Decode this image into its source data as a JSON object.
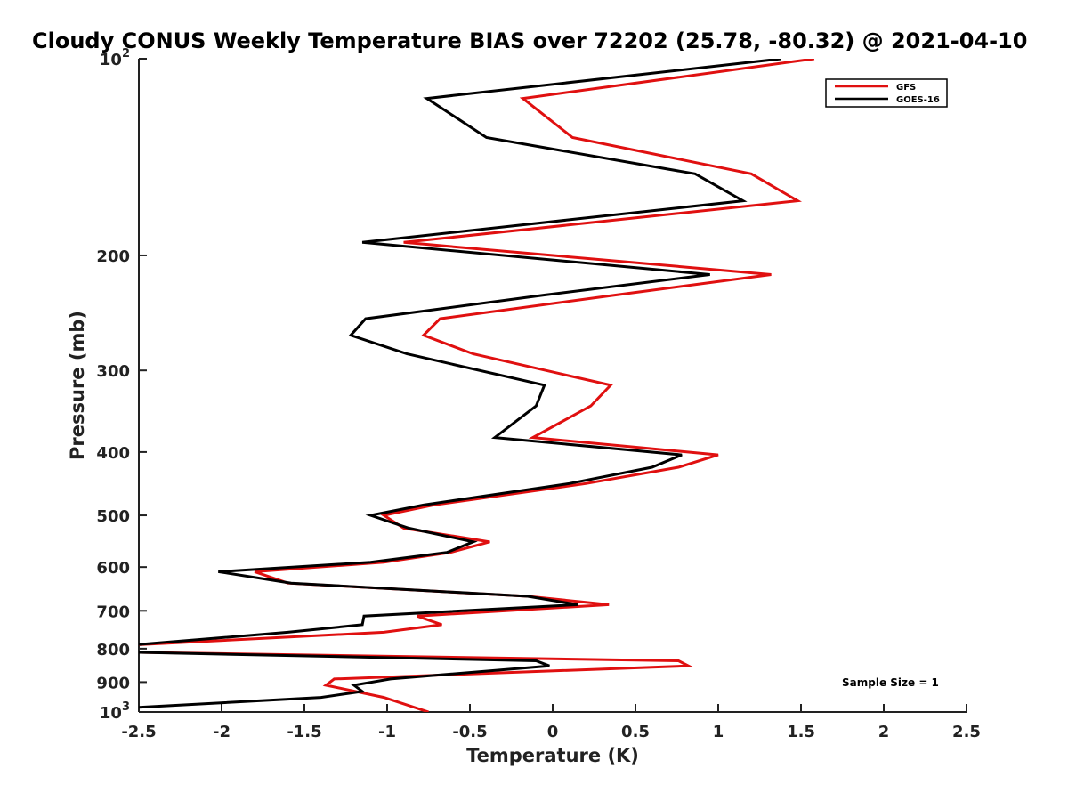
{
  "chart_data": {
    "type": "line",
    "title": "Cloudy CONUS Weekly Temperature BIAS over 72202 (25.78, -80.32) @ 2021-04-10",
    "xlabel": "Temperature (K)",
    "ylabel": "Pressure (mb)",
    "xlim": [
      -2.5,
      2.5
    ],
    "ylim": [
      1000,
      100
    ],
    "yscale": "log",
    "y_reversed": true,
    "grid": false,
    "legend_position": "top-right",
    "x_ticks": [
      "-2.5",
      "-2",
      "-1.5",
      "-1",
      "-0.5",
      "0",
      "0.5",
      "1",
      "1.5",
      "2",
      "2.5"
    ],
    "x_tick_values": [
      -2.5,
      -2,
      -1.5,
      -1,
      -0.5,
      0,
      0.5,
      1,
      1.5,
      2,
      2.5
    ],
    "y_ticks": [
      {
        "value": 100,
        "base": "10",
        "exp": "2"
      },
      {
        "value": 200,
        "label": "200"
      },
      {
        "value": 300,
        "label": "300"
      },
      {
        "value": 400,
        "label": "400"
      },
      {
        "value": 500,
        "label": "500"
      },
      {
        "value": 600,
        "label": "600"
      },
      {
        "value": 700,
        "label": "700"
      },
      {
        "value": 800,
        "label": "800"
      },
      {
        "value": 900,
        "label": "900"
      },
      {
        "value": 1000,
        "base": "10",
        "exp": "3"
      }
    ],
    "annotation": "Sample Size = 1",
    "series": [
      {
        "name": "GFS",
        "color": "#e01010",
        "x": [
          1.58,
          -0.18,
          0.12,
          1.2,
          1.48,
          -0.9,
          1.32,
          0.38,
          -0.68,
          -0.78,
          -0.48,
          0.35,
          0.23,
          -0.12,
          1.0,
          0.76,
          0.2,
          -0.72,
          -1.02,
          -0.9,
          -0.38,
          -0.62,
          -1.02,
          -1.8,
          -1.6,
          -0.15,
          0.34,
          -0.82,
          -0.67,
          -1.02,
          -2.55,
          -2.55,
          0.76,
          0.82,
          -1.32,
          -1.37,
          -1.02,
          -0.75
        ],
        "y": [
          100,
          115,
          132,
          150,
          165,
          191,
          214,
          230,
          250,
          265,
          283,
          316,
          340,
          380,
          404,
          422,
          447,
          482,
          500,
          523,
          549,
          570,
          590,
          610,
          635,
          665,
          685,
          713,
          735,
          755,
          790,
          810,
          835,
          850,
          890,
          910,
          950,
          1000
        ]
      },
      {
        "name": "GOES-16",
        "color": "#000000",
        "x": [
          1.38,
          -0.76,
          -0.4,
          0.86,
          1.15,
          -1.15,
          0.95,
          -0.05,
          -1.13,
          -1.22,
          -0.88,
          -0.05,
          -0.1,
          -0.35,
          0.78,
          0.6,
          0.1,
          -0.78,
          -1.1,
          -0.87,
          -0.48,
          -0.64,
          -1.1,
          -2.02,
          -1.58,
          -0.15,
          0.15,
          -1.14,
          -1.15,
          -1.6,
          -2.55,
          -2.55,
          -0.1,
          -0.02,
          -0.98,
          -1.2,
          -1.15,
          -1.4,
          -2.55
        ],
        "y": [
          100,
          115,
          132,
          150,
          165,
          191,
          214,
          230,
          250,
          265,
          283,
          316,
          340,
          380,
          404,
          422,
          447,
          482,
          500,
          523,
          549,
          570,
          590,
          610,
          635,
          665,
          685,
          713,
          735,
          755,
          790,
          810,
          835,
          850,
          890,
          910,
          930,
          950,
          985
        ]
      }
    ]
  }
}
